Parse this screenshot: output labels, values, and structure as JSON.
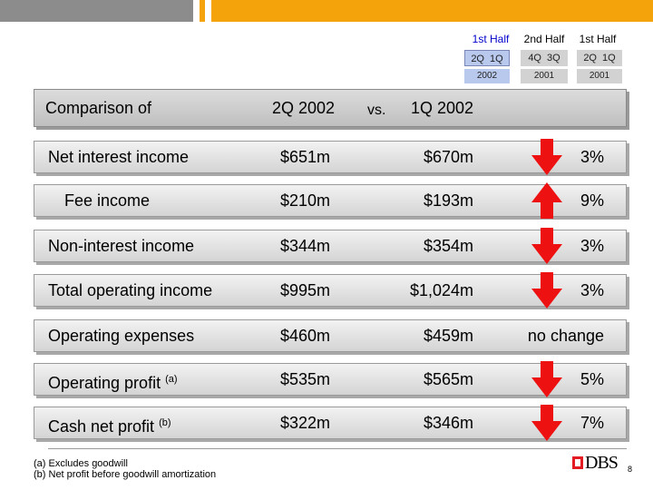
{
  "colors": {
    "brand_orange": "#f5a30a",
    "stripe_gray": "#8c8c8c",
    "decrease_red": "#ee1111",
    "increase_red": "#ee1111",
    "active_blue": "#0000cc"
  },
  "period_selector": {
    "groups": [
      {
        "label": "1st Half",
        "quarters": [
          "2Q",
          "1Q"
        ],
        "year": "2002",
        "active": true
      },
      {
        "label": "2nd Half",
        "quarters": [
          "4Q",
          "3Q"
        ],
        "year": "2001",
        "active": false
      },
      {
        "label": "1st Half",
        "quarters": [
          "2Q",
          "1Q"
        ],
        "year": "2001",
        "active": false
      }
    ]
  },
  "header": {
    "comparison_label": "Comparison of",
    "period_a": "2Q 2002",
    "vs_label": "vs.",
    "period_b": "1Q 2002"
  },
  "rows": [
    {
      "label": "Net interest income",
      "value_a": "$651m",
      "value_b": "$670m",
      "direction": "down",
      "change": "3%"
    },
    {
      "label": "Fee income",
      "value_a": "$210m",
      "value_b": "$193m",
      "direction": "up",
      "change": "9%"
    },
    {
      "label": "Non-interest income",
      "value_a": "$344m",
      "value_b": "$354m",
      "direction": "down",
      "change": "3%"
    },
    {
      "label": "Total operating income",
      "value_a": "$995m",
      "value_b": "$1,024m",
      "direction": "down",
      "change": "3%"
    },
    {
      "label": "Operating expenses",
      "value_a": "$460m",
      "value_b": "$459m",
      "direction": "none",
      "change": "no change"
    },
    {
      "label": "Operating profit",
      "note": "(a)",
      "value_a": "$535m",
      "value_b": "$565m",
      "direction": "down",
      "change": "5%"
    },
    {
      "label": "Cash net profit",
      "note": "(b)",
      "value_a": "$322m",
      "value_b": "$346m",
      "direction": "down",
      "change": "7%"
    }
  ],
  "footnotes": {
    "a": "(a) Excludes goodwill",
    "b": "(b) Net profit before goodwill amortization"
  },
  "logo_text": "DBS",
  "page_number": "8"
}
